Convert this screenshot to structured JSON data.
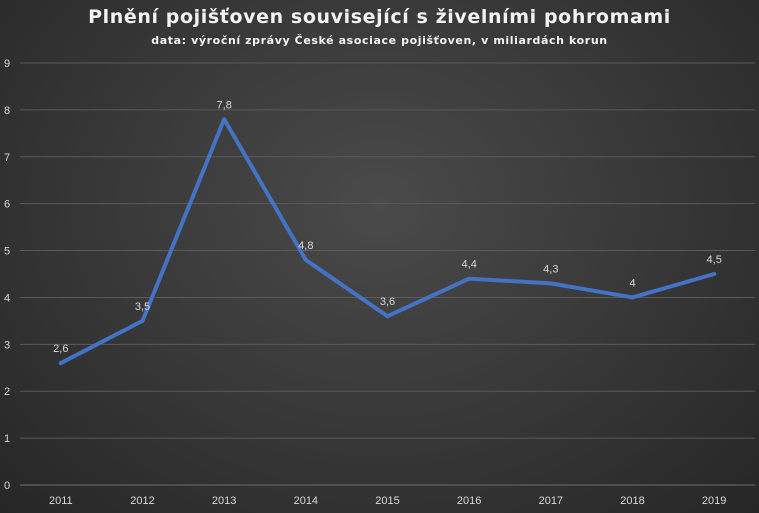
{
  "chart_data": {
    "type": "line",
    "title": "Plnění pojišťoven související s živelními pohromami",
    "subtitle": "data: výroční zprávy České asociace pojišťoven, v miliardách korun",
    "xlabel": "",
    "ylabel": "",
    "categories": [
      "2011",
      "2012",
      "2013",
      "2014",
      "2015",
      "2016",
      "2017",
      "2018",
      "2019"
    ],
    "series": [
      {
        "values": [
          2.6,
          3.5,
          7.8,
          4.8,
          3.6,
          4.4,
          4.3,
          4.0,
          4.5
        ],
        "data_labels": [
          "2,6",
          "3,5",
          "7,8",
          "4,8",
          "3,6",
          "4,4",
          "4,3",
          "4",
          "4,5"
        ]
      }
    ],
    "ylim": [
      0,
      9
    ],
    "y_ticks": [
      0,
      1,
      2,
      3,
      4,
      5,
      6,
      7,
      8,
      9
    ],
    "y_tick_labels": [
      "0",
      "1",
      "2",
      "3",
      "4",
      "5",
      "6",
      "7",
      "8",
      "9"
    ],
    "grid": true,
    "legend": "none",
    "colors": {
      "line": "#4472c4",
      "grid": "#5a5a5a",
      "axis": "#6e6e6e",
      "text": "#d9d9d9",
      "title": "#f2f2f2"
    }
  }
}
